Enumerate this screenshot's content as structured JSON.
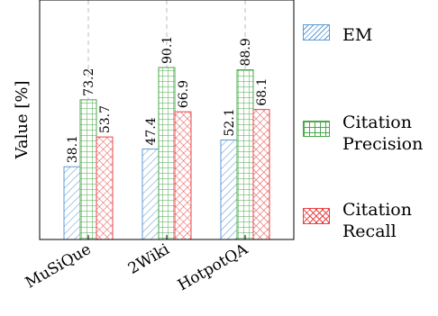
{
  "chart_data": {
    "type": "bar",
    "categories": [
      "MuSiQue",
      "2Wiki",
      "HotpotQA"
    ],
    "series": [
      {
        "name": "EM",
        "values": [
          38.1,
          47.4,
          52.1
        ],
        "color": "#5b9bd5",
        "pattern": "diagonal-hatch"
      },
      {
        "name": "Citation Precision",
        "values": [
          73.2,
          90.1,
          88.9
        ],
        "color": "#4aa84a",
        "pattern": "grid"
      },
      {
        "name": "Citation Recall",
        "values": [
          53.7,
          66.9,
          68.1
        ],
        "color": "#e8474a",
        "pattern": "crosshatch"
      }
    ],
    "ylabel": "Value [%]",
    "xlabel": "",
    "ylim": [
      0,
      100
    ],
    "grid": "vertical-dashed",
    "legend_position": "right"
  }
}
